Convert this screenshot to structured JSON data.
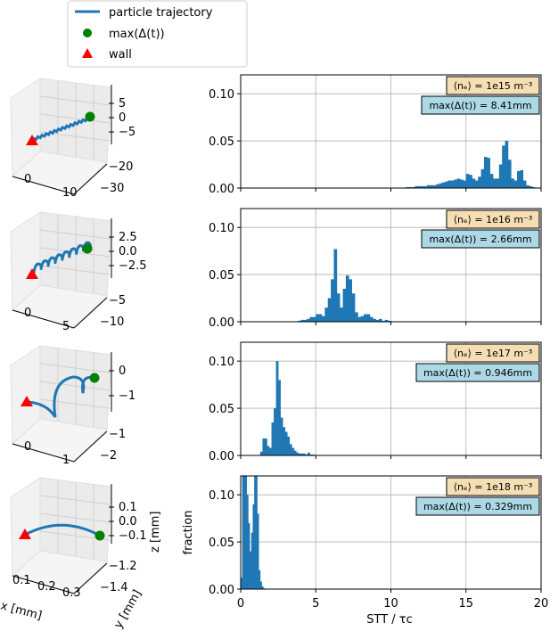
{
  "legend": {
    "items": [
      {
        "label": "particle trajectory",
        "marker": "line",
        "color": "#1f77b4"
      },
      {
        "label": "max(Δ(t))",
        "marker": "circle",
        "color": "#008000"
      },
      {
        "label": "wall",
        "marker": "triangle",
        "color": "#ff0000"
      }
    ]
  },
  "colors": {
    "bar": "#1f77b4",
    "density_box": "#f5deb3",
    "max_box": "#add8e6",
    "grid": "#b0b0b0"
  },
  "chart_data": [
    {
      "type": "bar",
      "title": "",
      "xlabel": "",
      "ylabel": "",
      "xlim": [
        0,
        20
      ],
      "ylim": [
        0,
        0.12
      ],
      "grid": true,
      "density_label": "⟨nₑ⟩ = 1e15 m⁻³",
      "max_label": "max(Δ(t)) = 8.41mm",
      "yticks": [
        "0.00",
        "0.05",
        "0.10"
      ],
      "bin_start": 11.0,
      "bin_width": 0.2,
      "values": [
        0.001,
        0.001,
        0.001,
        0.002,
        0.002,
        0.002,
        0.002,
        0.003,
        0.003,
        0.003,
        0.004,
        0.005,
        0.006,
        0.007,
        0.008,
        0.008,
        0.009,
        0.01,
        0.009,
        0.008,
        0.015,
        0.014,
        0.01,
        0.008,
        0.012,
        0.02,
        0.033,
        0.032,
        0.015,
        0.01,
        0.01,
        0.025,
        0.045,
        0.05,
        0.03,
        0.01,
        0.008,
        0.018,
        0.019,
        0.008,
        0.003,
        0.002,
        0.001
      ],
      "traj3d": {
        "x_ticks": [
          "0",
          "10"
        ],
        "y_ticks": [
          "−20",
          "−30"
        ],
        "z_ticks": [
          "5",
          "0",
          "−5"
        ]
      }
    },
    {
      "type": "bar",
      "xlim": [
        0,
        20
      ],
      "ylim": [
        0,
        0.12
      ],
      "grid": true,
      "density_label": "⟨nₑ⟩ = 1e16 m⁻³",
      "max_label": "max(Δ(t)) = 2.66mm",
      "yticks": [
        "0.00",
        "0.05",
        "0.10"
      ],
      "bin_start": 3.8,
      "bin_width": 0.2,
      "values": [
        0.001,
        0.002,
        0.002,
        0.003,
        0.005,
        0.005,
        0.008,
        0.008,
        0.006,
        0.015,
        0.025,
        0.045,
        0.077,
        0.03,
        0.015,
        0.035,
        0.049,
        0.045,
        0.03,
        0.01,
        0.005,
        0.006,
        0.008,
        0.008,
        0.005,
        0.003,
        0.002,
        0.003,
        0.001,
        0.002,
        0.001
      ],
      "traj3d": {
        "x_ticks": [
          "0",
          "5"
        ],
        "y_ticks": [
          "−5",
          "−10"
        ],
        "z_ticks": [
          "2.5",
          "0.0",
          "−2.5"
        ]
      }
    },
    {
      "type": "bar",
      "xlim": [
        0,
        20
      ],
      "ylim": [
        0,
        0.12
      ],
      "grid": true,
      "density_label": "⟨nₑ⟩ = 1e17 m⁻³",
      "max_label": "max(Δ(t)) = 0.946mm",
      "yticks": [
        "0.00",
        "0.05",
        "0.10"
      ],
      "bin_start": 1.3,
      "bin_width": 0.15,
      "values": [
        0.004,
        0.018,
        0.018,
        0.01,
        0.008,
        0.035,
        0.05,
        0.1,
        0.08,
        0.04,
        0.03,
        0.025,
        0.02,
        0.012,
        0.008,
        0.005,
        0.003,
        0.002,
        0.002,
        0.002,
        0.001,
        0.003,
        0.001,
        0.001
      ],
      "traj3d": {
        "x_ticks": [
          "0",
          "1"
        ],
        "y_ticks": [
          "−1",
          "−2"
        ],
        "z_ticks": [
          "0",
          "−1"
        ]
      }
    },
    {
      "type": "bar",
      "xlim": [
        0,
        20
      ],
      "ylim": [
        0,
        0.12
      ],
      "grid": true,
      "density_label": "⟨nₑ⟩ = 1e18 m⁻³",
      "max_label": "max(Δ(t)) = 0.329mm",
      "yticks": [
        "0.00",
        "0.05",
        "0.10"
      ],
      "xticks": [
        "0",
        "5",
        "10",
        "15",
        "20"
      ],
      "xlabel": "STT / τc",
      "ylabel": "fraction",
      "bin_start": 0.0,
      "bin_width": 0.1,
      "values": [
        0.012,
        0.13,
        0.16,
        0.15,
        0.1,
        0.07,
        0.04,
        0.06,
        0.09,
        0.14,
        0.15,
        0.08,
        0.02,
        0.008,
        0.003,
        0.001
      ],
      "traj3d": {
        "x_ticks": [
          "0.1",
          "0.2",
          "0.3"
        ],
        "y_ticks": [
          "−1.2",
          "−1.4"
        ],
        "z_ticks": [
          "0.1",
          "0.0",
          "−0.1"
        ],
        "xlabel": "x [mm]",
        "ylabel": "y [mm]",
        "zlabel": "z [mm]"
      }
    }
  ]
}
